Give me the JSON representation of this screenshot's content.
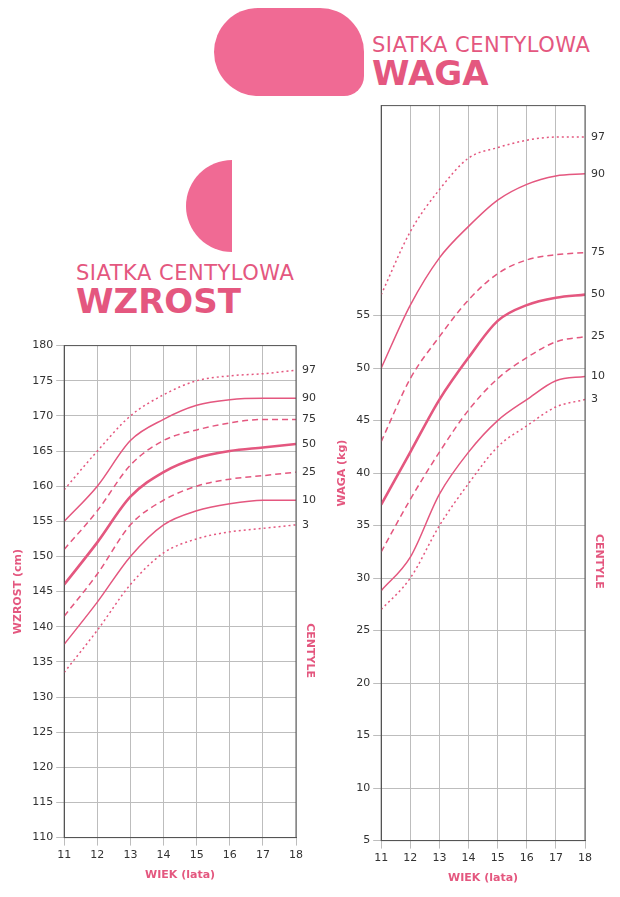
{
  "chart_data": [
    {
      "type": "line",
      "title": "SIATKA CENTYLOWA",
      "subtitle": "WZROST",
      "x_label": "WIEK (lata)",
      "y_label": "WZROST (cm)",
      "annotations": [
        "CENTYLE"
      ],
      "x": [
        11,
        12,
        13,
        14,
        15,
        16,
        17,
        18
      ],
      "xlim": [
        11,
        18
      ],
      "xticks": [
        11,
        12,
        13,
        14,
        15,
        16,
        17,
        18
      ],
      "ylim": [
        110,
        180
      ],
      "yticks": [
        110,
        115,
        120,
        125,
        130,
        135,
        140,
        145,
        150,
        155,
        160,
        165,
        170,
        175,
        180
      ],
      "grid": true,
      "series": [
        {
          "name": "97",
          "color": "#e4577f",
          "line_style": "dotted",
          "values": [
            159.5,
            165,
            170,
            173,
            175,
            175.7,
            176,
            176.5
          ]
        },
        {
          "name": "90",
          "color": "#e4577f",
          "line_style": "solid",
          "values": [
            155,
            160,
            166.5,
            169.5,
            171.5,
            172.3,
            172.5,
            172.5
          ]
        },
        {
          "name": "75",
          "color": "#e4577f",
          "line_style": "dashed",
          "values": [
            151,
            156.5,
            163,
            166.5,
            168,
            169,
            169.5,
            169.5
          ]
        },
        {
          "name": "50",
          "color": "#e4577f",
          "line_style": "bold",
          "values": [
            146,
            152,
            158.5,
            162,
            164,
            165,
            165.5,
            166
          ]
        },
        {
          "name": "25",
          "color": "#e4577f",
          "line_style": "dashed",
          "values": [
            141.5,
            147.5,
            154.5,
            158,
            160,
            161,
            161.5,
            162
          ]
        },
        {
          "name": "10",
          "color": "#e4577f",
          "line_style": "solid",
          "values": [
            137.5,
            143.5,
            150,
            154.5,
            156.5,
            157.5,
            158,
            158
          ]
        },
        {
          "name": "3",
          "color": "#e4577f",
          "line_style": "dotted",
          "values": [
            133.5,
            139.5,
            146,
            150.5,
            152.5,
            153.5,
            154,
            154.5
          ]
        }
      ]
    },
    {
      "type": "line",
      "title": "SIATKA CENTYLOWA",
      "subtitle": "WAGA",
      "x_label": "WIEK (lata)",
      "y_label": "WAGA (kg)",
      "annotations": [
        "CENTYLE"
      ],
      "x": [
        11,
        12,
        13,
        14,
        15,
        16,
        17,
        18
      ],
      "xlim": [
        11,
        18
      ],
      "xticks": [
        11,
        12,
        13,
        14,
        15,
        16,
        17,
        18
      ],
      "ylim": [
        5,
        75
      ],
      "yticks": [
        5,
        10,
        15,
        20,
        25,
        30,
        35,
        40,
        45,
        50,
        55
      ],
      "grid": true,
      "series": [
        {
          "name": "97",
          "color": "#e4577f",
          "line_style": "dotted",
          "values": [
            57,
            63,
            67,
            70,
            71,
            71.7,
            72,
            72
          ]
        },
        {
          "name": "90",
          "color": "#e4577f",
          "line_style": "solid",
          "values": [
            50,
            56,
            60.5,
            63.5,
            66,
            67.5,
            68.3,
            68.5
          ]
        },
        {
          "name": "75",
          "color": "#e4577f",
          "line_style": "dashed",
          "values": [
            43,
            49,
            53,
            56.5,
            59,
            60.3,
            60.8,
            61
          ]
        },
        {
          "name": "50",
          "color": "#e4577f",
          "line_style": "bold",
          "values": [
            37,
            42,
            47,
            51,
            54.5,
            56,
            56.7,
            57
          ]
        },
        {
          "name": "25",
          "color": "#e4577f",
          "line_style": "dashed",
          "values": [
            32.5,
            37.5,
            42,
            46,
            49,
            51,
            52.5,
            53
          ]
        },
        {
          "name": "10",
          "color": "#e4577f",
          "line_style": "solid",
          "values": [
            28.8,
            32,
            38,
            42,
            45,
            47,
            48.8,
            49.2
          ]
        },
        {
          "name": "3",
          "color": "#e4577f",
          "line_style": "dotted",
          "values": [
            27,
            30,
            35,
            39,
            42.5,
            44.5,
            46.3,
            47
          ]
        }
      ]
    }
  ]
}
